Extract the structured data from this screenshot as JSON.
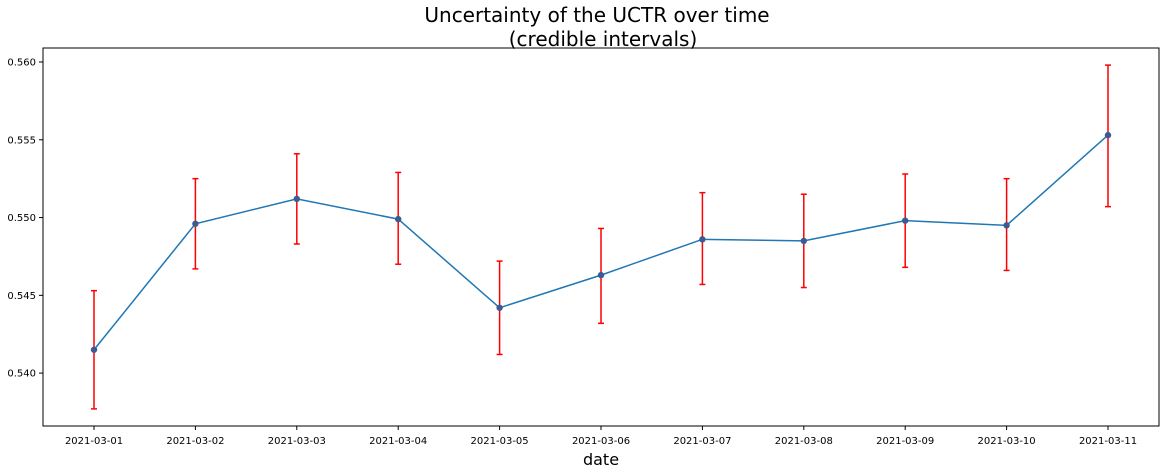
{
  "chart_data": {
    "type": "line",
    "title": [
      "Uncertainty of the UCTR over time",
      "(credible intervals)"
    ],
    "xlabel": "date",
    "ylabel": "",
    "categories": [
      "2021-03-01",
      "2021-03-02",
      "2021-03-03",
      "2021-03-04",
      "2021-03-05",
      "2021-03-06",
      "2021-03-07",
      "2021-03-08",
      "2021-03-09",
      "2021-03-10",
      "2021-03-11"
    ],
    "series": [
      {
        "values": [
          0.5415,
          0.5496,
          0.5512,
          0.5499,
          0.5442,
          0.5463,
          0.5486,
          0.5485,
          0.5498,
          0.5495,
          0.5553
        ],
        "error_low": [
          0.5377,
          0.5467,
          0.5483,
          0.547,
          0.5412,
          0.5432,
          0.5457,
          0.5455,
          0.5468,
          0.5466,
          0.5507
        ],
        "error_high": [
          0.5453,
          0.5525,
          0.5541,
          0.5529,
          0.5472,
          0.5493,
          0.5516,
          0.5515,
          0.5528,
          0.5525,
          0.5598
        ],
        "line_color": "#1f77b4",
        "marker_color": "#3b5b92",
        "error_color": "#ff0000"
      }
    ],
    "ylim": [
      0.5366,
      0.5609
    ],
    "yticks": [
      0.54,
      0.545,
      0.55,
      0.555,
      0.56
    ],
    "ytick_labels": [
      "0.540",
      "0.545",
      "0.550",
      "0.555",
      "0.560"
    ],
    "grid": false,
    "legend": false
  }
}
